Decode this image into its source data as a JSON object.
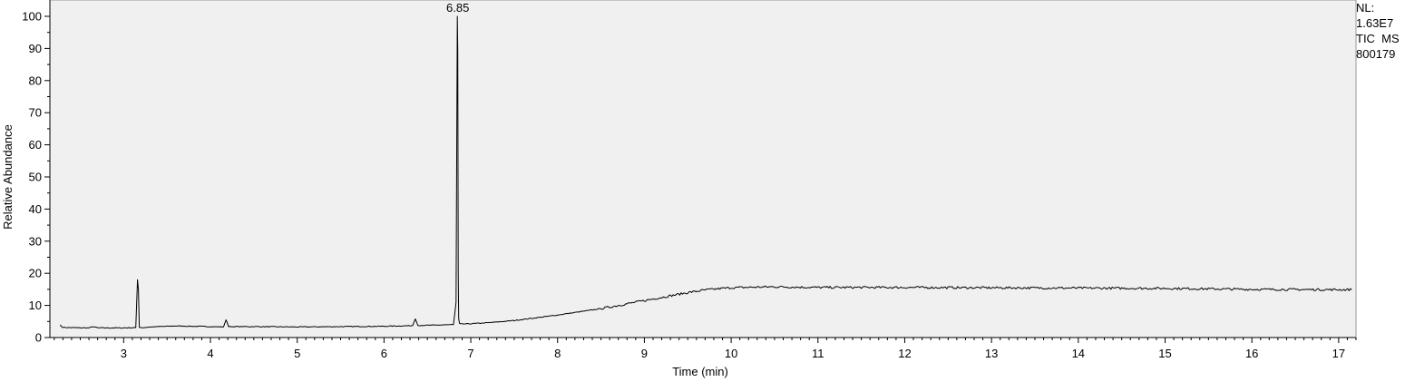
{
  "chart_data": {
    "type": "line",
    "title": "",
    "xlabel": "Time (min)",
    "ylabel": "Relative Abundance",
    "xlim": [
      2.15,
      17.2
    ],
    "ylim": [
      0,
      100
    ],
    "x_ticks": [
      3,
      4,
      5,
      6,
      7,
      8,
      9,
      10,
      11,
      12,
      13,
      14,
      15,
      16,
      17
    ],
    "y_ticks": [
      0,
      10,
      20,
      30,
      40,
      50,
      60,
      70,
      80,
      90,
      100
    ],
    "grid": false,
    "background": "#f0f0f0",
    "line_color": "#000000",
    "peak_annotations": [
      {
        "x": 6.85,
        "label": "6.85"
      }
    ],
    "series": [
      {
        "x": [
          2.27,
          2.28,
          2.3,
          2.35,
          2.6,
          2.65,
          2.7,
          3.0,
          3.14,
          3.16,
          3.17,
          3.18,
          3.2,
          3.3,
          3.6,
          4.0,
          4.15,
          4.18,
          4.21,
          4.5,
          5.0,
          5.5,
          6.0,
          6.33,
          6.36,
          6.39,
          6.5,
          6.8,
          6.83,
          6.845,
          6.85,
          6.855,
          6.86,
          6.87,
          6.9,
          7.0,
          7.2,
          7.5,
          7.8,
          8.0,
          8.2,
          8.5,
          8.8,
          9.0,
          9.3,
          9.5,
          9.7,
          9.9,
          10.0,
          10.3,
          10.5,
          11.0,
          12.0,
          13.0,
          14.0,
          15.0,
          16.0,
          17.0,
          17.15
        ],
        "y": [
          4.0,
          3.5,
          3.2,
          3.1,
          3.0,
          3.4,
          3.0,
          3.0,
          3.1,
          18.0,
          15.0,
          3.2,
          3.0,
          3.3,
          3.6,
          3.4,
          3.3,
          5.5,
          3.4,
          3.4,
          3.3,
          3.4,
          3.5,
          3.7,
          5.8,
          3.8,
          3.8,
          4.0,
          11.0,
          100.0,
          89.0,
          20.0,
          6.0,
          4.4,
          4.2,
          4.3,
          4.6,
          5.3,
          6.3,
          7.0,
          7.8,
          9.0,
          10.5,
          11.5,
          13.0,
          14.0,
          14.8,
          15.3,
          15.5,
          15.7,
          15.8,
          15.6,
          15.6,
          15.5,
          15.4,
          15.3,
          15.0,
          14.9,
          14.9
        ]
      }
    ]
  },
  "side_info": {
    "nl_label": "NL:",
    "nl_value": "1.63E7",
    "scan_label": "TIC  MS",
    "file_name": "800179"
  }
}
